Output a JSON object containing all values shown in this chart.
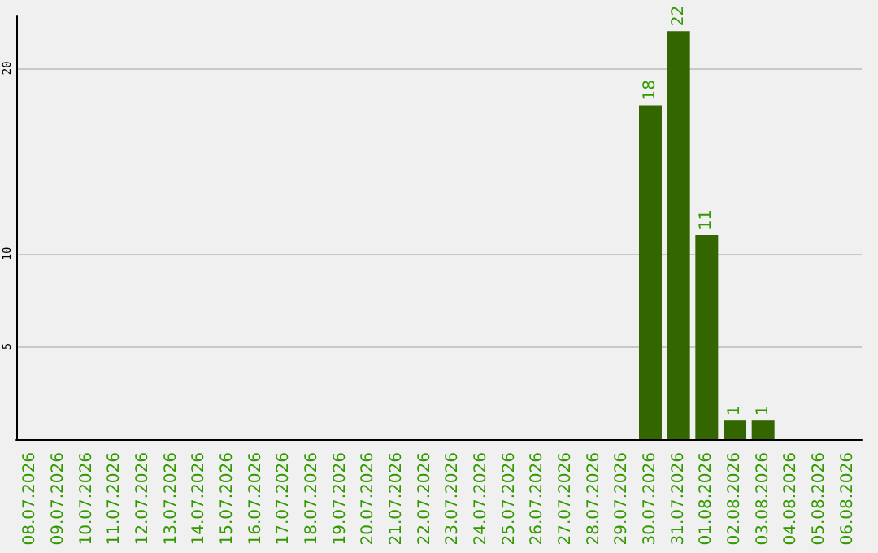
{
  "chart_data": {
    "type": "bar",
    "categories": [
      "08.07.2026",
      "09.07.2026",
      "10.07.2026",
      "11.07.2026",
      "12.07.2026",
      "13.07.2026",
      "14.07.2026",
      "15.07.2026",
      "16.07.2026",
      "17.07.2026",
      "18.07.2026",
      "19.07.2026",
      "20.07.2026",
      "21.07.2026",
      "22.07.2026",
      "23.07.2026",
      "24.07.2026",
      "25.07.2026",
      "26.07.2026",
      "27.07.2026",
      "28.07.2026",
      "29.07.2026",
      "30.07.2026",
      "31.07.2026",
      "01.08.2026",
      "02.08.2026",
      "03.08.2026",
      "04.08.2026",
      "05.08.2026",
      "06.08.2026"
    ],
    "values": [
      0,
      0,
      0,
      0,
      0,
      0,
      0,
      0,
      0,
      0,
      0,
      0,
      0,
      0,
      0,
      0,
      0,
      0,
      0,
      0,
      0,
      0,
      18,
      22,
      11,
      1,
      1,
      0,
      0,
      0
    ],
    "value_labels": [
      null,
      null,
      null,
      null,
      null,
      null,
      null,
      null,
      null,
      null,
      null,
      null,
      null,
      null,
      null,
      null,
      null,
      null,
      null,
      null,
      null,
      null,
      "18",
      "22",
      "11",
      "1",
      "1",
      null,
      null,
      null
    ],
    "color": "#336600",
    "ylim": [
      0,
      22.8
    ],
    "yticks": [
      5,
      10,
      20
    ],
    "grid": "y"
  }
}
